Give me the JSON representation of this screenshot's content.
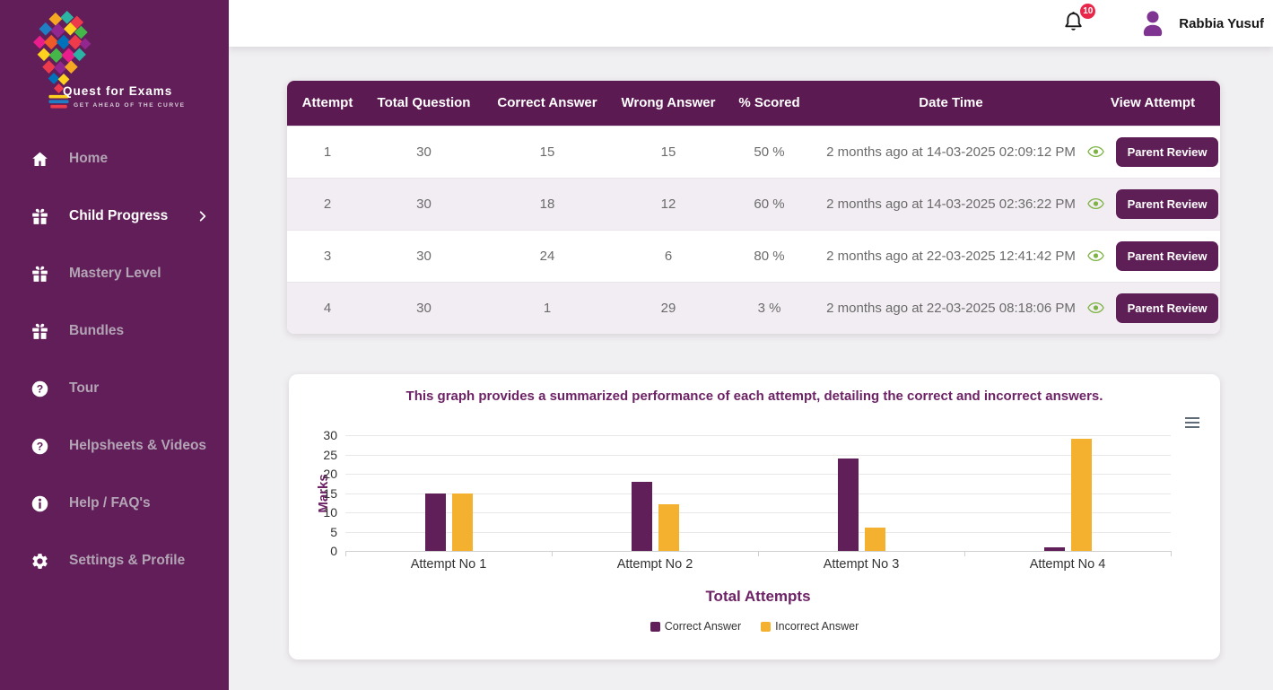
{
  "topbar": {
    "notification_count": "10",
    "user_name": "Rabbia Yusuf"
  },
  "sidebar": {
    "logo_title": "Quest for Exams",
    "logo_tagline": "GET AHEAD OF THE CURVE",
    "items": [
      {
        "label": "Home",
        "icon": "home-icon",
        "active": false,
        "expandable": false
      },
      {
        "label": "Child Progress",
        "icon": "gift-icon",
        "active": true,
        "expandable": true
      },
      {
        "label": "Mastery Level",
        "icon": "gift-icon",
        "active": false,
        "expandable": false
      },
      {
        "label": "Bundles",
        "icon": "gift-icon",
        "active": false,
        "expandable": false
      },
      {
        "label": "Tour",
        "icon": "question-icon",
        "active": false,
        "expandable": false
      },
      {
        "label": "Helpsheets & Videos",
        "icon": "question-icon",
        "active": false,
        "expandable": false
      },
      {
        "label": "Help / FAQ's",
        "icon": "info-icon",
        "active": false,
        "expandable": false
      },
      {
        "label": "Settings & Profile",
        "icon": "gear-icon",
        "active": false,
        "expandable": false
      }
    ]
  },
  "attempts_table": {
    "columns": [
      "Attempt",
      "Total Question",
      "Correct Answer",
      "Wrong Answer",
      "% Scored",
      "Date Time",
      "View Attempt"
    ],
    "action_label": "Parent Review",
    "rows": [
      {
        "attempt": "1",
        "total_question": "30",
        "correct_answer": "15",
        "wrong_answer": "15",
        "scored": "50 %",
        "date_time": "2 months ago at 14-03-2025 02:09:12 PM"
      },
      {
        "attempt": "2",
        "total_question": "30",
        "correct_answer": "18",
        "wrong_answer": "12",
        "scored": "60 %",
        "date_time": "2 months ago at 14-03-2025 02:36:22 PM"
      },
      {
        "attempt": "3",
        "total_question": "30",
        "correct_answer": "24",
        "wrong_answer": "6",
        "scored": "80 %",
        "date_time": "2 months ago at 22-03-2025 12:41:42 PM"
      },
      {
        "attempt": "4",
        "total_question": "30",
        "correct_answer": "1",
        "wrong_answer": "29",
        "scored": "3 %",
        "date_time": "2 months ago at 22-03-2025 08:18:06 PM"
      }
    ]
  },
  "chart_data": {
    "type": "bar",
    "title": "This graph provides a summarized performance of each attempt, detailing the correct and incorrect answers.",
    "categories": [
      "Attempt No 1",
      "Attempt No 2",
      "Attempt No 3",
      "Attempt No 4"
    ],
    "series": [
      {
        "name": "Correct Answer",
        "color": "#611f5a",
        "values": [
          15,
          18,
          24,
          1
        ]
      },
      {
        "name": "Incorrect Answer",
        "color": "#f4b02f",
        "values": [
          15,
          12,
          6,
          29
        ]
      }
    ],
    "xlabel": "Total Attempts",
    "ylabel": "Marks",
    "ylim": [
      0,
      30
    ],
    "yticks": [
      0,
      5,
      10,
      15,
      20,
      25,
      30
    ],
    "grid": true,
    "legend_position": "bottom"
  },
  "colors": {
    "sidebar_purple": "#611e58",
    "table_header_purple": "#5c1a52",
    "button_purple": "#5e1f56",
    "bar_purple": "#611f5a",
    "bar_yellow": "#f4b02f",
    "eye_green": "#7cb342",
    "badge_red": "#e8274b",
    "page_background": "#f0eff1",
    "row_stripe": "#f2edf2"
  }
}
